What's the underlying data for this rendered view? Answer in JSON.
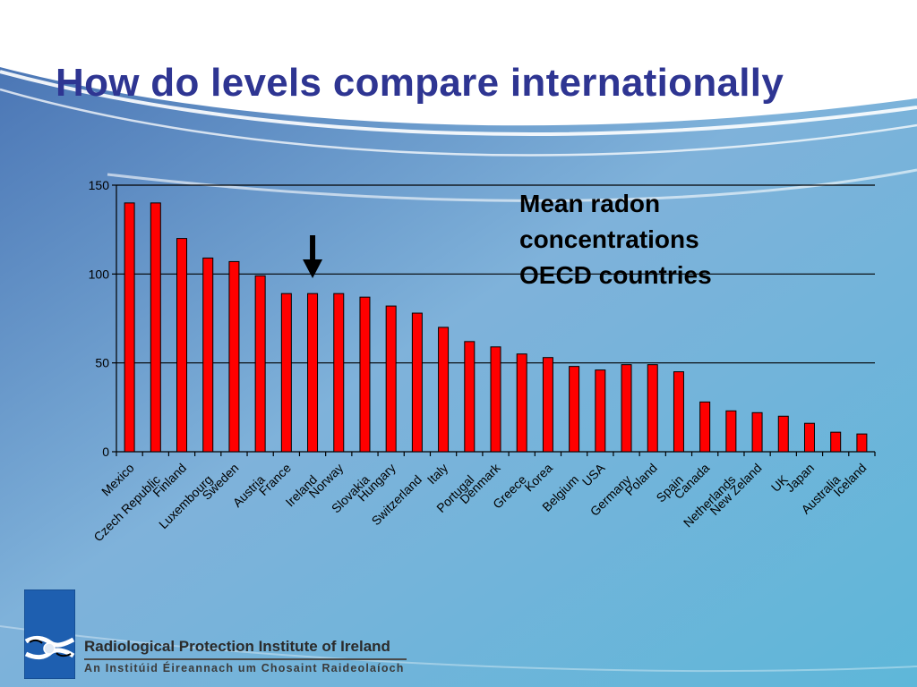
{
  "slide": {
    "title": "How do levels compare internationally",
    "annotation_lines": [
      "Mean radon",
      "concentrations",
      "OECD countries"
    ]
  },
  "logo": {
    "name": "Radiological Protection Institute of Ireland",
    "subname": "An Institúid Éireannach um Chosaint Raideolaíoch"
  },
  "colors": {
    "title": "#2e3592",
    "bar": "#ff0000",
    "bar_outline": "#000000",
    "background_light": "#e6f1f8",
    "background_blue": "#5a96cc"
  },
  "chart_data": {
    "type": "bar",
    "categories": [
      "Mexico",
      "Czech Republic",
      "Finland",
      "Luxembourg",
      "Sweden",
      "Austria",
      "France",
      "Ireland",
      "Norway",
      "Slovakia",
      "Hungary",
      "Switzerland",
      "Italy",
      "Portugal",
      "Denmark",
      "Greece",
      "Korea",
      "Belgium",
      "USA",
      "Germany",
      "Poland",
      "Spain",
      "Canada",
      "Netherlands",
      "New Zeland",
      "UK",
      "Japan",
      "Australia",
      "Iceland"
    ],
    "values": [
      140,
      140,
      120,
      109,
      107,
      99,
      89,
      89,
      89,
      87,
      82,
      78,
      70,
      62,
      59,
      55,
      53,
      48,
      46,
      49,
      49,
      45,
      28,
      23,
      22,
      20,
      16,
      11,
      10
    ],
    "ylim": [
      0,
      150
    ],
    "yticks": [
      0,
      50,
      100,
      150
    ],
    "grid": true,
    "highlight": "Ireland",
    "highlight_marker": "down-arrow"
  }
}
